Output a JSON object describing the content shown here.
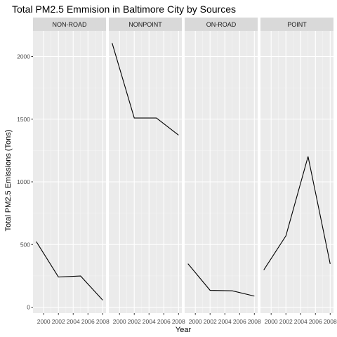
{
  "chart_data": {
    "type": "line",
    "title": "Total PM2.5 Emmision in Baltimore City by Sources",
    "xlabel": "Year",
    "ylabel": "Total PM2.5 Emissions (Tons)",
    "x": [
      1999,
      2002,
      2005,
      2008
    ],
    "x_ticks": [
      2000,
      2002,
      2004,
      2006,
      2008
    ],
    "y_ticks": [
      0,
      500,
      1000,
      1500,
      2000
    ],
    "xlim": [
      1999,
      2008
    ],
    "ylim": [
      0,
      2110
    ],
    "grid": true,
    "series": [
      {
        "name": "NON-ROAD",
        "values": [
          522.9,
          240.8,
          248.9,
          55.8
        ]
      },
      {
        "name": "NONPOINT",
        "values": [
          2107.6,
          1509.5,
          1509.5,
          1373.2
        ]
      },
      {
        "name": "ON-ROAD",
        "values": [
          346.8,
          134.3,
          130.4,
          88.3
        ]
      },
      {
        "name": "POINT",
        "values": [
          296.8,
          569.3,
          1202.5,
          344.98
        ]
      }
    ],
    "colors": {
      "panel_background": "#ebebeb",
      "strip_background": "#d9d9d9",
      "grid_major": "#ffffff",
      "line": "#000000"
    }
  }
}
